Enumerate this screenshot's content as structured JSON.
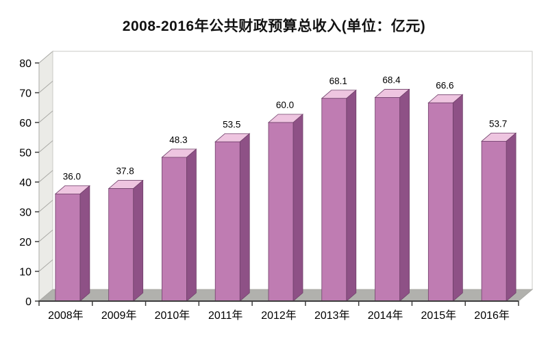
{
  "title": "2008-2016年公共财政预算总收入(单位：亿元)",
  "chart_data": {
    "type": "bar",
    "title": "2008-2016年公共财政预算总收入(单位：亿元)",
    "categories": [
      "2008年",
      "2009年",
      "2010年",
      "2011年",
      "2012年",
      "2013年",
      "2014年",
      "2015年",
      "2016年"
    ],
    "values": [
      36.0,
      37.8,
      48.3,
      53.5,
      60.0,
      68.1,
      68.4,
      66.6,
      53.7
    ],
    "value_labels": [
      "36.0",
      "37.8",
      "48.3",
      "53.5",
      "60.0",
      "68.1",
      "68.4",
      "66.6",
      "53.7"
    ],
    "xlabel": "",
    "ylabel": "",
    "ylim": [
      0,
      80
    ],
    "ytick_step": 10,
    "yticks": [
      "0",
      "10",
      "20",
      "30",
      "40",
      "50",
      "60",
      "70",
      "80"
    ],
    "grid": "side-wall-lines",
    "legend": "none",
    "style": "3d-column",
    "colors": {
      "bar_front": "#bf7cb2",
      "bar_top": "#eec5e0",
      "bar_side": "#8e5186",
      "bar_outline": "#70406a",
      "wall": "#ebebe7",
      "wall_line": "#a9a9a5",
      "floor": "#b1b1ad",
      "back_wall": "#ffffff",
      "back_wall_border": "#c9c9c5",
      "axis": "#3c3c3c",
      "text": "#000000"
    }
  }
}
